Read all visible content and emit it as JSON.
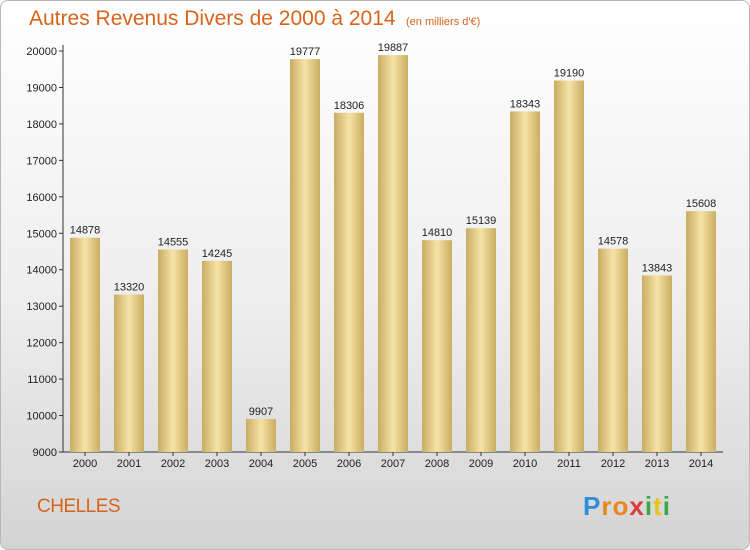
{
  "title": "Autres Revenus Divers de 2000 à 2014",
  "subtitle": "(en milliers d'€)",
  "city": "CHELLES",
  "brand": {
    "letters": [
      "P",
      "r",
      "o",
      "x",
      "i",
      "t",
      "i"
    ],
    "colors": [
      "#2f8fd6",
      "#e8881e",
      "#e8881e",
      "#d93a3a",
      "#3aa845",
      "#e8c21e",
      "#3aa845"
    ]
  },
  "colors": {
    "title": "#d8641b",
    "bar_light": "#f6e3a6",
    "bar_dark": "#c9ad62"
  },
  "chart_data": {
    "type": "bar",
    "categories": [
      "2000",
      "2001",
      "2002",
      "2003",
      "2004",
      "2005",
      "2006",
      "2007",
      "2008",
      "2009",
      "2010",
      "2011",
      "2012",
      "2013",
      "2014"
    ],
    "values": [
      14878,
      13320,
      14555,
      14245,
      9907,
      19777,
      18306,
      19887,
      14810,
      15139,
      18343,
      19190,
      14578,
      13843,
      15608
    ],
    "ylim": [
      9000,
      20000
    ],
    "yticks": [
      9000,
      10000,
      11000,
      12000,
      13000,
      14000,
      15000,
      16000,
      17000,
      18000,
      19000,
      20000
    ],
    "grid": false,
    "legend": "none"
  }
}
